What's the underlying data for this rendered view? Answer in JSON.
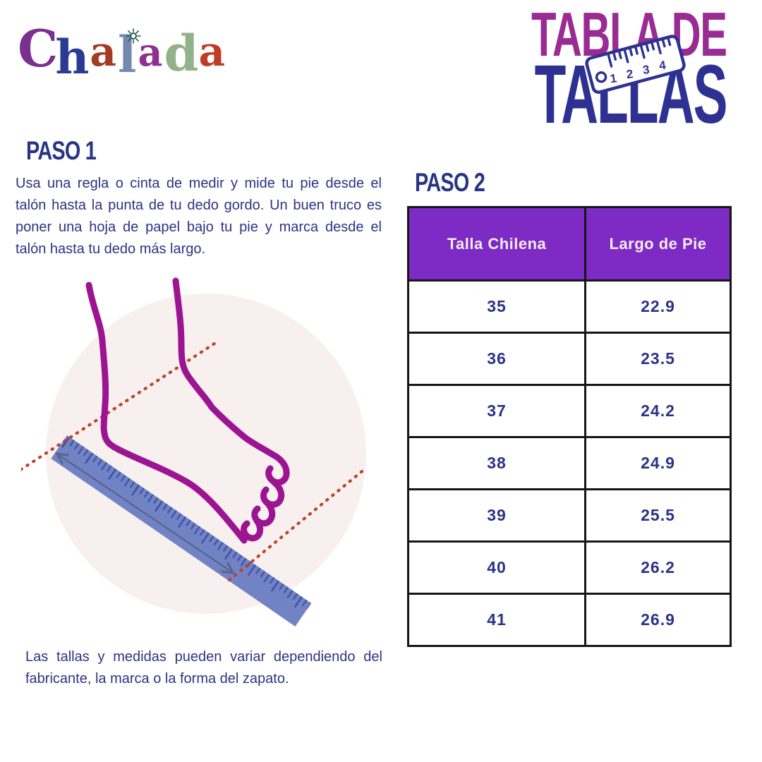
{
  "brand": {
    "name": "Chalada",
    "letters": [
      {
        "ch": "C",
        "color": "#7B2F8E"
      },
      {
        "ch": "h",
        "color": "#2B3B94"
      },
      {
        "ch": "a",
        "color": "#A23B22"
      },
      {
        "ch": "l",
        "color": "#7488B0"
      },
      {
        "ch": "a",
        "color": "#8E2F92"
      },
      {
        "ch": "d",
        "color": "#93B289"
      },
      {
        "ch": "a",
        "color": "#BF3D27"
      }
    ],
    "flower_color": "#265C4B"
  },
  "title": {
    "line1": "TABLA DE",
    "line2": "TALLAS"
  },
  "tape_icon": {
    "numbers": [
      "1",
      "2",
      "3",
      "4"
    ]
  },
  "step1": {
    "heading": "PASO 1",
    "body": "Usa una regla o cinta de medir y mide tu pie desde el talón hasta la punta de tu dedo gordo. Un buen truco es poner una hoja de papel bajo tu pie y marca desde el talón hasta tu dedo más largo."
  },
  "step2": {
    "heading": "PASO 2"
  },
  "size_table": {
    "columns": [
      "Talla Chilena",
      "Largo de Pie"
    ],
    "rows": [
      [
        "35",
        "22.9"
      ],
      [
        "36",
        "23.5"
      ],
      [
        "37",
        "24.2"
      ],
      [
        "38",
        "24.9"
      ],
      [
        "39",
        "25.5"
      ],
      [
        "40",
        "26.2"
      ],
      [
        "41",
        "26.9"
      ]
    ]
  },
  "disclaimer": "Las tallas y medidas pueden variar dependiendo del fabricante, la marca o la forma del zapato.",
  "colors": {
    "navy": "#2B3287",
    "magenta_title": "#992B93",
    "table_purple": "#7D2BC4",
    "header_text": "#F5ECF1",
    "foot_magenta": "#9C1491",
    "ruler_blue": "#7183C4",
    "ruler_tick": "#3D52A5",
    "dotted_red": "#BF4127",
    "arrow_gray": "#5A6590",
    "circle_bg": "#F7F0EE",
    "border_black": "#161616"
  }
}
